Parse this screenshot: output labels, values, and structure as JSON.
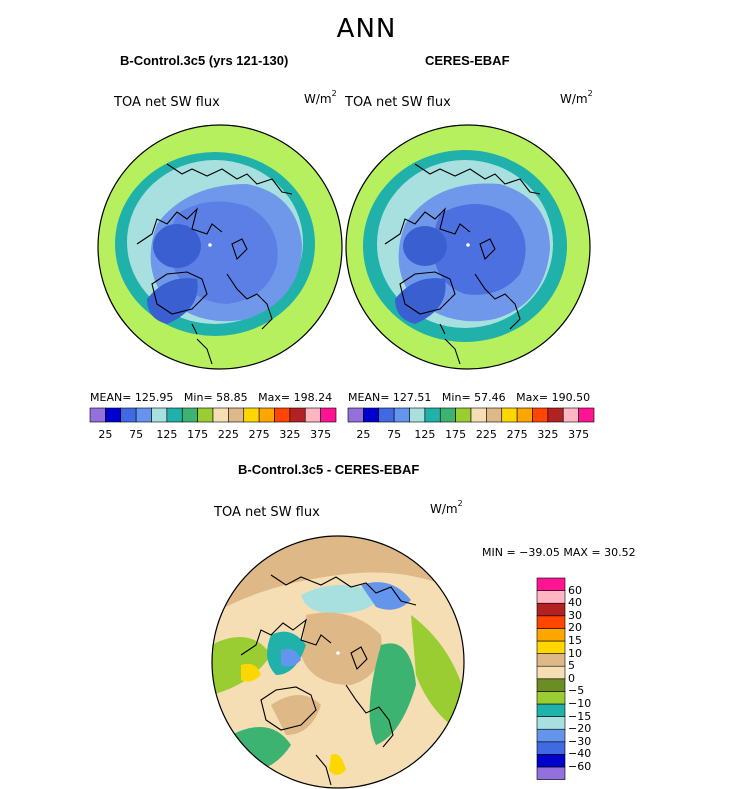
{
  "figure": {
    "title": "ANN",
    "panels": [
      {
        "title": "B-Control.3c5 (yrs 121-130)",
        "variable": "TOA net SW flux",
        "units_base": "W/m",
        "units_exp": "2",
        "mean_label": "MEAN=",
        "mean": "125.95",
        "min_label": "Min=",
        "min": "58.85",
        "max_label": "Max=",
        "max": "198.24"
      },
      {
        "title": "CERES-EBAF",
        "variable": "TOA net SW flux",
        "units_base": "W/m",
        "units_exp": "2",
        "mean_label": "MEAN=",
        "mean": "127.51",
        "min_label": "Min=",
        "min": "57.46",
        "max_label": "Max=",
        "max": "190.50"
      }
    ],
    "diff_panel": {
      "title": "B-Control.3c5 - CERES-EBAF",
      "variable": "TOA net SW flux",
      "units_base": "W/m",
      "units_exp": "2",
      "minmax_text": "MIN = −39.05 MAX =   30.52"
    }
  },
  "abs_colorbar": {
    "colors": [
      "#9370db",
      "#0000cd",
      "#4169e1",
      "#6495ed",
      "#a8e0e0",
      "#20b2aa",
      "#3cb371",
      "#9acd32",
      "#f5deb3",
      "#deb887",
      "#ffd700",
      "#ffa500",
      "#ff4500",
      "#b22222",
      "#ffb6c1",
      "#ff1493"
    ],
    "tick_labels": [
      "25",
      "75",
      "125",
      "175",
      "225",
      "275",
      "325",
      "375"
    ]
  },
  "diff_colorbar": {
    "colors": [
      "#9370db",
      "#0000cd",
      "#4169e1",
      "#6495ed",
      "#a8e0e0",
      "#20b2aa",
      "#9acd32",
      "#6b8e23",
      "#f5deb3",
      "#deb887",
      "#ffd700",
      "#ffa500",
      "#ff4500",
      "#b22222",
      "#ffb6c1",
      "#ff1493"
    ],
    "tick_labels": [
      "−60",
      "−40",
      "−30",
      "−20",
      "−15",
      "−10",
      "−5",
      "0",
      "5",
      "10",
      "15",
      "20",
      "30",
      "40",
      "60"
    ]
  }
}
